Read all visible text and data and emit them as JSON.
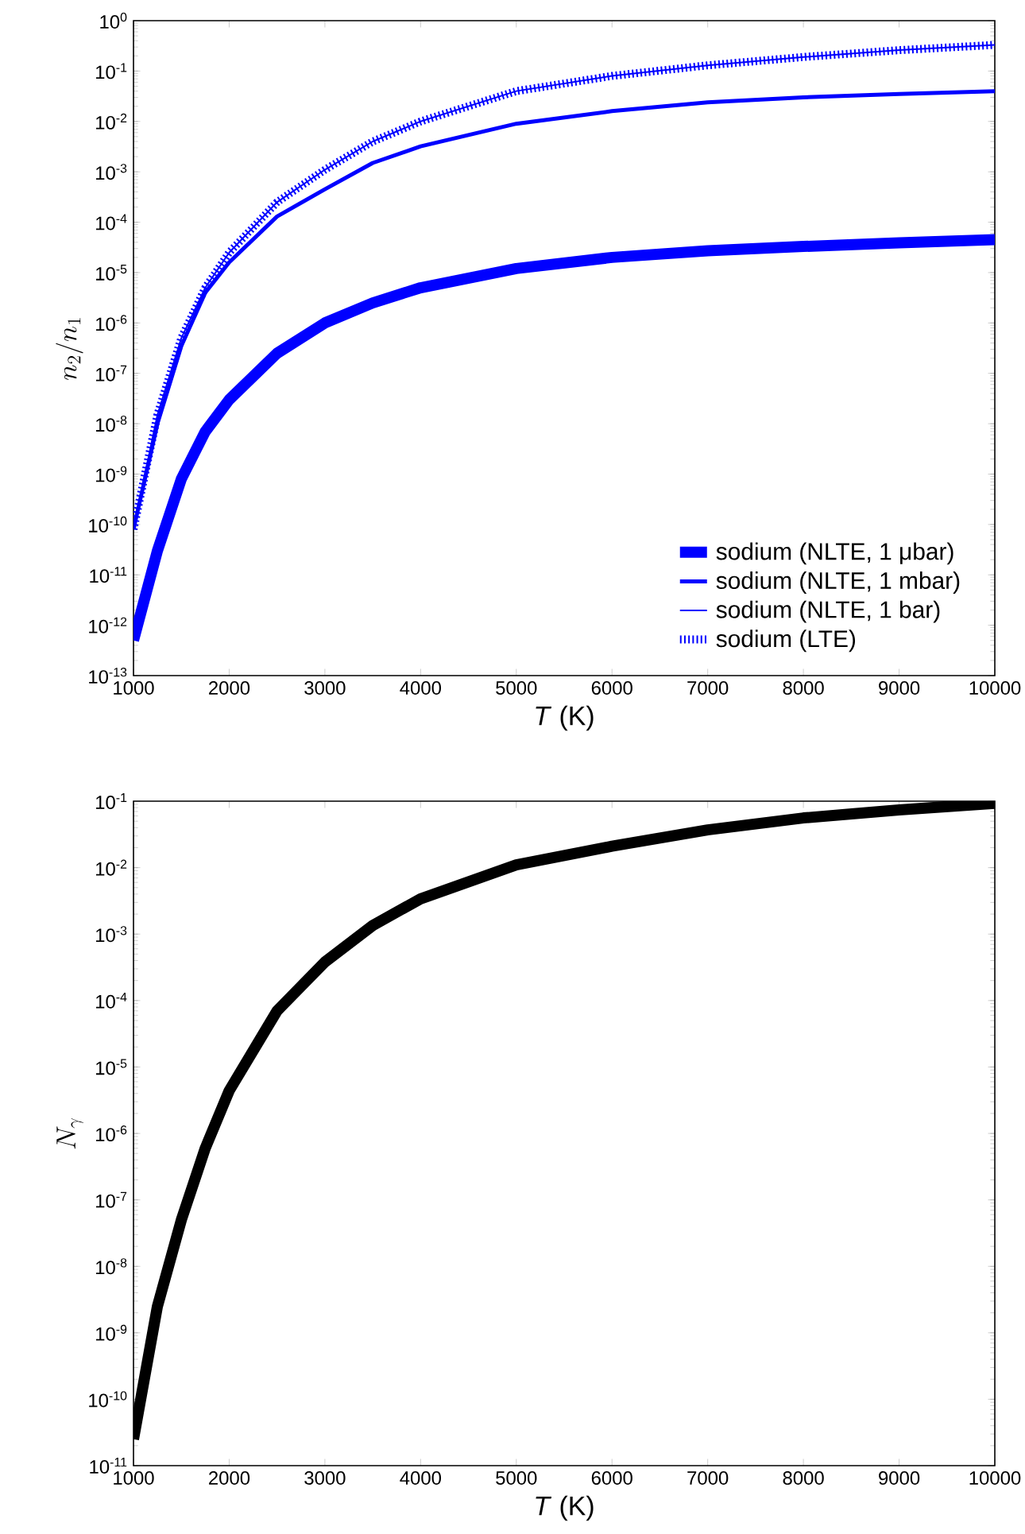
{
  "chart_data": [
    {
      "type": "line",
      "xlabel": "*T* (K)",
      "ylabel": "n_2/n_1",
      "log": "y",
      "legend": "bottom right",
      "x": [
        1000,
        1250,
        1500,
        1750,
        2000,
        2500,
        3000,
        3500,
        4000,
        5000,
        6000,
        7000,
        8000,
        9000,
        10000
      ],
      "series": [
        {
          "name": "sodium (NLTE, 1 μbar)",
          "color": "#0000ff",
          "values": [
            5e-13,
            3e-11,
            8e-10,
            7e-09,
            3e-08,
            2.5e-07,
            1e-06,
            2.5e-06,
            5e-06,
            1.2e-05,
            2e-05,
            2.7e-05,
            3.3e-05,
            3.9e-05,
            4.5e-05
          ]
        },
        {
          "name": "sodium (NLTE, 1 mbar)",
          "color": "#0000ff",
          "values": [
            8e-11,
            1e-08,
            3.5e-07,
            4e-06,
            1.6e-05,
            0.00013,
            0.00045,
            0.0015,
            0.0032,
            0.009,
            0.016,
            0.024,
            0.03,
            0.035,
            0.04
          ]
        },
        {
          "name": "sodium (NLTE, 1 bar)",
          "color": "#0000ff",
          "values": [
            8e-11,
            1.5e-08,
            5e-07,
            5e-06,
            2.5e-05,
            0.00025,
            0.0011,
            0.004,
            0.01,
            0.04,
            0.08,
            0.13,
            0.19,
            0.26,
            0.33
          ]
        },
        {
          "name": "sodium (LTE)",
          "color": "#0000ff",
          "line_style": "dotted",
          "values": [
            8e-11,
            1.5e-08,
            5e-07,
            5e-06,
            2.5e-05,
            0.00025,
            0.0011,
            0.004,
            0.01,
            0.04,
            0.08,
            0.13,
            0.19,
            0.26,
            0.33
          ]
        }
      ],
      "xlim": [
        1000,
        10000
      ],
      "xticks": [
        1000,
        2000,
        3000,
        4000,
        5000,
        6000,
        7000,
        8000,
        9000,
        10000
      ],
      "ylim": [
        1e-13,
        1
      ],
      "yticks": [
        {
          "value": 1e-13,
          "label": "10$^{-13}$"
        },
        {
          "value": 1e-12,
          "label": "10$^{-12}$"
        },
        {
          "value": 1e-11,
          "label": "10$^{-11}$"
        },
        {
          "value": 1e-10,
          "label": "10$^{-10}$"
        },
        {
          "value": 1e-09,
          "label": "10$^{-9}$"
        },
        {
          "value": 1e-08,
          "label": "10$^{-8}$"
        },
        {
          "value": 1e-07,
          "label": "10$^{-7}$"
        },
        {
          "value": 1e-06,
          "label": "10$^{-6}$"
        },
        {
          "value": 1e-05,
          "label": "10$^{-5}$"
        },
        {
          "value": 0.0001,
          "label": "10$^{-4}$"
        },
        {
          "value": 0.001,
          "label": "10$^{-3}$"
        },
        {
          "value": 0.01,
          "label": "10$^{-2}$"
        },
        {
          "value": 0.1,
          "label": "10$^{-1}$"
        },
        {
          "value": 1,
          "label": "10$^{0}$"
        }
      ]
    },
    {
      "type": "line",
      "xlabel": "*T* (K)",
      "ylabel": "N_\\gamma",
      "log": "y",
      "x": [
        1000,
        1250,
        1500,
        1750,
        2000,
        2500,
        3000,
        3500,
        4000,
        5000,
        6000,
        7000,
        8000,
        9000,
        10000
      ],
      "series": [
        {
          "color": "#000000",
          "values": [
            2.5e-11,
            2.5e-09,
            5e-08,
            6e-07,
            4.4e-06,
            7e-05,
            0.00038,
            0.00135,
            0.0034,
            0.011,
            0.021,
            0.037,
            0.056,
            0.074,
            0.093
          ]
        }
      ],
      "xlim": [
        1000,
        10000
      ],
      "xticks": [
        1000,
        2000,
        3000,
        4000,
        5000,
        6000,
        7000,
        8000,
        9000,
        10000
      ],
      "ylim": [
        1e-11,
        0.1
      ],
      "yticks": [
        {
          "value": 1e-11,
          "label": "10$^{-11}$"
        },
        {
          "value": 1e-10,
          "label": "10$^{-10}$"
        },
        {
          "value": 1e-09,
          "label": "10$^{-9}$"
        },
        {
          "value": 1e-08,
          "label": "10$^{-8}$"
        },
        {
          "value": 1e-07,
          "label": "10$^{-7}$"
        },
        {
          "value": 1e-06,
          "label": "10$^{-6}$"
        },
        {
          "value": 1e-05,
          "label": "10$^{-5}$"
        },
        {
          "value": 0.0001,
          "label": "10$^{-4}$"
        },
        {
          "value": 0.001,
          "label": "10$^{-3}$"
        },
        {
          "value": 0.01,
          "label": "10$^{-2}$"
        },
        {
          "value": 0.1,
          "label": "10$^{-1}$"
        }
      ]
    }
  ]
}
